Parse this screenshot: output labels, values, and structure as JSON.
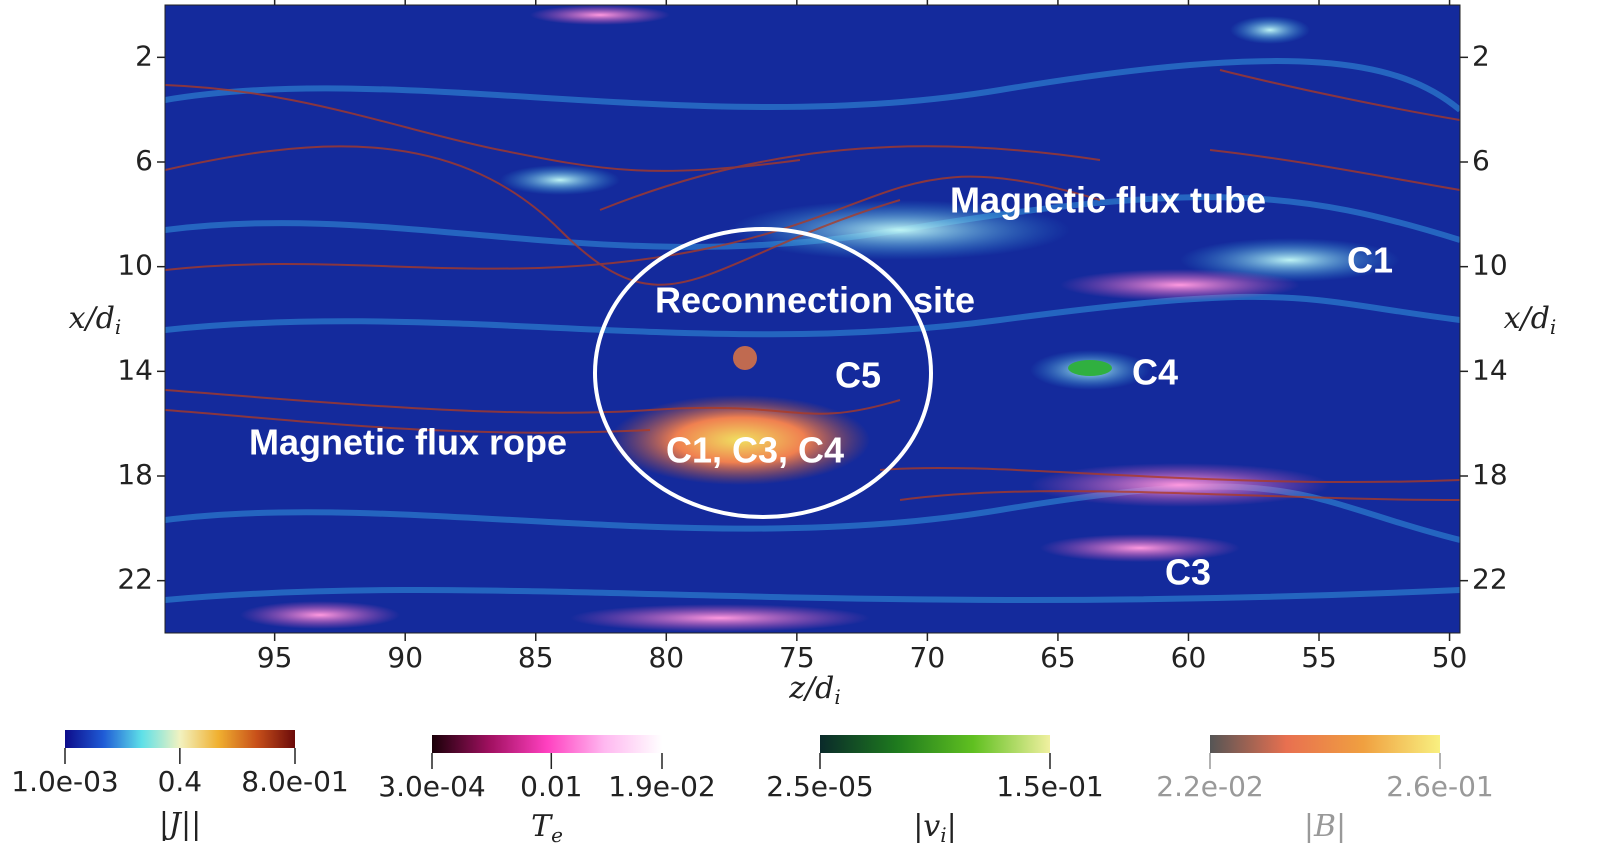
{
  "chart_data": {
    "type": "field-map",
    "xlim": [
      99.2,
      49.6
    ],
    "ylim": [
      0,
      24
    ],
    "xticks": [
      95,
      90,
      85,
      80,
      75,
      70,
      65,
      60,
      55,
      50
    ],
    "yticks": [
      2,
      6,
      10,
      14,
      18,
      22
    ],
    "xlabel": {
      "text": "z/d",
      "sub": "i"
    },
    "ylabel": {
      "text": "x/d",
      "sub": "i"
    },
    "annotations": [
      "Magnetic flux tube",
      "C1",
      "Reconnection  site",
      "C5",
      "C4",
      "Magnetic flux rope",
      "C1, C3, C4",
      "C3"
    ],
    "colorbars": [
      {
        "label": {
          "text": "|J|",
          "sub": ""
        },
        "colors": [
          "#0d0c8a",
          "#1f5bd6",
          "#5ee0e8",
          "#f2f2c0",
          "#f0b030",
          "#c8501a",
          "#6b0a0a"
        ],
        "ticks": [
          {
            "value": 0.001,
            "label": "1.0e-03"
          },
          0.4,
          {
            "value": 0.8,
            "label": "8.0e-01"
          }
        ]
      },
      {
        "label": {
          "text": "T",
          "sub": "e"
        },
        "colors": [
          "#1a0008",
          "#a01060",
          "#ff40c0",
          "#ffb8f0",
          "#ffffff"
        ],
        "ticks": [
          {
            "value": 0.0003,
            "label": "3.0e-04"
          },
          0.01,
          {
            "value": 0.019,
            "label": "1.9e-02"
          }
        ]
      },
      {
        "label": {
          "text": "|v",
          "sub": "i"
        },
        "colors": [
          "#0a2a2a",
          "#1e7a1e",
          "#60c020",
          "#f0f0a0"
        ],
        "ticks": [
          {
            "value": 2.5e-05,
            "label": "2.5e-05"
          },
          {
            "value": 0.15,
            "label": "1.5e-01"
          }
        ]
      },
      {
        "label": {
          "text": "|B",
          "sub": ""
        },
        "colors": [
          "#555555",
          "#e87050",
          "#f0a040",
          "#f8f080"
        ],
        "ticks": [
          {
            "value": 0.022,
            "label": "2.2e-02"
          },
          {
            "value": 0.26,
            "label": "2.6e-01"
          }
        ]
      }
    ]
  }
}
